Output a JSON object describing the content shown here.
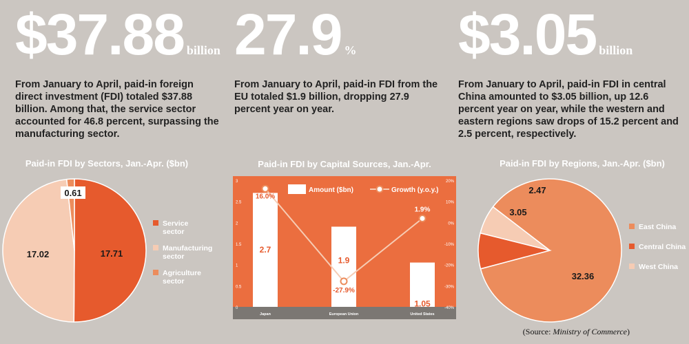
{
  "stats": [
    {
      "value": "$37.88",
      "unit": "billion",
      "text": "From January to April, paid-in foreign direct investment (FDI) totaled $37.88 billion. Among that, the service sector accounted for 46.8 percent, surpassing the manufacturing sector."
    },
    {
      "value": "27.9",
      "unit": "%",
      "text": "From January to April, paid-in FDI from the EU totaled $1.9 billion, dropping 27.9 percent year on year."
    },
    {
      "value": "$3.05",
      "unit": "billion",
      "text": "From January to April, paid-in FDI in central China amounted to $3.05 billion, up 12.6 percent year on year, while the western and eastern regions saw drops of 15.2 percent and 2.5 percent, respectively."
    }
  ],
  "source_label": "(Source: ",
  "source_name": "Ministry of Commerce",
  "source_end": ")",
  "colors": {
    "orange": "#e65a2d",
    "salmon": "#ec8c5c",
    "peach": "#f6ccb4",
    "background": "#cbc6c1",
    "chart_bg": "#eb6e3f",
    "axis_band": "#7b7773"
  },
  "chart_data": [
    {
      "type": "pie",
      "title": "Paid-in FDI by Sectors, Jan.-Apr. ($bn)",
      "legend_position": "right",
      "slices": [
        {
          "label": "Service sector",
          "value": 17.71,
          "value_label": "17.71",
          "color": "#e65a2d"
        },
        {
          "label": "Manufacturing sector",
          "value": 17.02,
          "value_label": "17.02",
          "color": "#f6ccb4"
        },
        {
          "label": "Agriculture sector",
          "value": 0.61,
          "value_label": "0.61",
          "color": "#ec8c5c"
        }
      ]
    },
    {
      "type": "bar",
      "title": "Paid-in FDI by Capital Sources, Jan.-Apr.",
      "categories": [
        "Japan",
        "European Union",
        "United States"
      ],
      "series": [
        {
          "name": "Amount ($bn)",
          "type": "bar",
          "values": [
            2.7,
            1.9,
            1.05
          ],
          "labels": [
            "2.7",
            "1.9",
            "1.05"
          ]
        },
        {
          "name": "Growth (y.o.y.)",
          "type": "line",
          "values": [
            16.0,
            -27.9,
            1.9
          ],
          "labels": [
            "16.0%",
            "-27.9%",
            "1.9%"
          ]
        }
      ],
      "ylim": [
        0,
        3
      ],
      "yticks": [
        "0",
        "0.5",
        "1",
        "1.5",
        "2",
        "2.5",
        "3"
      ],
      "y2lim": [
        -40,
        20
      ],
      "y2ticks": [
        "-40%",
        "-30%",
        "-20%",
        "-10%",
        "0%",
        "10%",
        "20%"
      ],
      "legend_position": "top"
    },
    {
      "type": "pie",
      "title": "Paid-in FDI by Regions, Jan.-Apr. ($bn)",
      "legend_position": "right",
      "slices": [
        {
          "label": "East China",
          "value": 32.36,
          "value_label": "32.36",
          "color": "#ec8c5c"
        },
        {
          "label": "Central China",
          "value": 3.05,
          "value_label": "3.05",
          "color": "#e65a2d"
        },
        {
          "label": "West China",
          "value": 2.47,
          "value_label": "2.47",
          "color": "#f6ccb4"
        }
      ]
    }
  ]
}
